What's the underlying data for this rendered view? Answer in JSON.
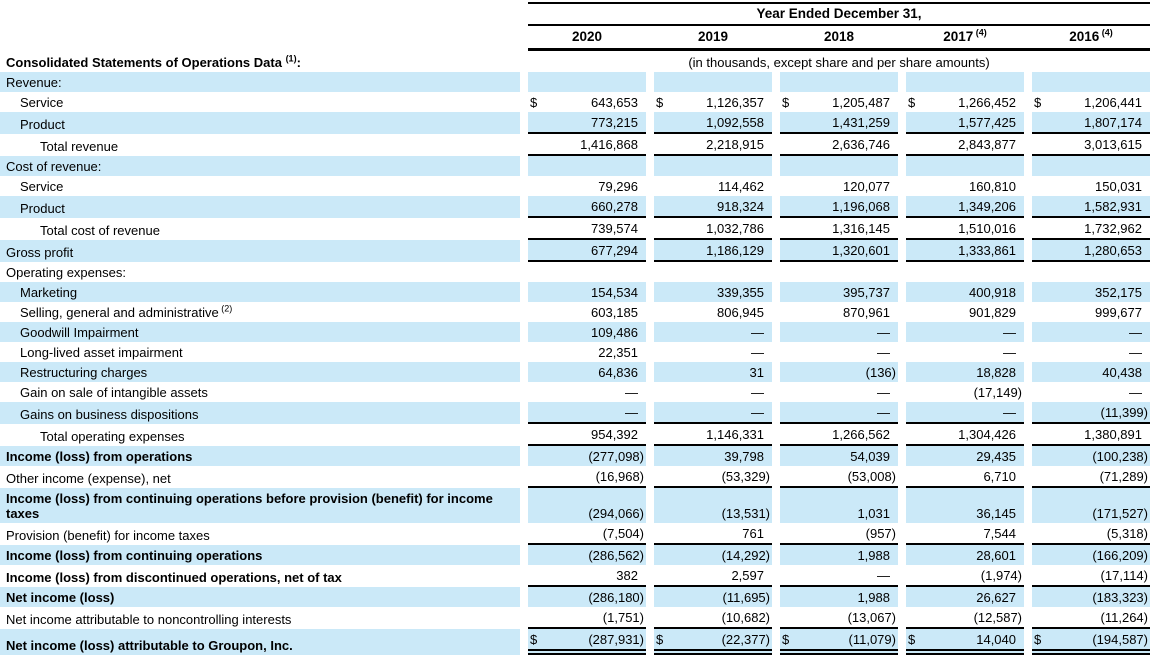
{
  "colors": {
    "row_highlight": "#cbe9f8",
    "rule": "#000000",
    "text": "#000000"
  },
  "table": {
    "currency_symbol": "$",
    "header": {
      "year_ended": "Year Ended December 31,",
      "columns": [
        {
          "label": "2020",
          "superscript": ""
        },
        {
          "label": "2019",
          "superscript": ""
        },
        {
          "label": "2018",
          "superscript": ""
        },
        {
          "label": "2017",
          "superscript": "(4)"
        },
        {
          "label": "2016",
          "superscript": "(4)"
        }
      ],
      "section_label": "Consolidated Statements of Operations Data",
      "section_superscript": "(1)",
      "section_colon": ":",
      "units_note": "(in thousands, except share and per share amounts)"
    },
    "rows": [
      {
        "label": "Revenue:",
        "indent": 0,
        "bold": false,
        "shaded": true,
        "dollar_sign": false,
        "underline": "none",
        "values": [
          "",
          "",
          "",
          "",
          ""
        ]
      },
      {
        "label": "Service",
        "indent": 1,
        "bold": false,
        "shaded": false,
        "dollar_sign": true,
        "underline": "none",
        "values": [
          "643,653",
          "1,126,357",
          "1,205,487",
          "1,266,452",
          "1,206,441"
        ]
      },
      {
        "label": "Product",
        "indent": 1,
        "bold": false,
        "shaded": true,
        "dollar_sign": false,
        "underline": "single",
        "values": [
          "773,215",
          "1,092,558",
          "1,431,259",
          "1,577,425",
          "1,807,174"
        ]
      },
      {
        "label": "Total revenue",
        "indent": 2,
        "bold": false,
        "shaded": false,
        "dollar_sign": false,
        "underline": "single",
        "values": [
          "1,416,868",
          "2,218,915",
          "2,636,746",
          "2,843,877",
          "3,013,615"
        ]
      },
      {
        "label": "Cost of revenue:",
        "indent": 0,
        "bold": false,
        "shaded": true,
        "dollar_sign": false,
        "underline": "none",
        "values": [
          "",
          "",
          "",
          "",
          ""
        ]
      },
      {
        "label": "Service",
        "indent": 1,
        "bold": false,
        "shaded": false,
        "dollar_sign": false,
        "underline": "none",
        "values": [
          "79,296",
          "114,462",
          "120,077",
          "160,810",
          "150,031"
        ]
      },
      {
        "label": "Product",
        "indent": 1,
        "bold": false,
        "shaded": true,
        "dollar_sign": false,
        "underline": "single",
        "values": [
          "660,278",
          "918,324",
          "1,196,068",
          "1,349,206",
          "1,582,931"
        ]
      },
      {
        "label": "Total cost of revenue",
        "indent": 2,
        "bold": false,
        "shaded": false,
        "dollar_sign": false,
        "underline": "single",
        "values": [
          "739,574",
          "1,032,786",
          "1,316,145",
          "1,510,016",
          "1,732,962"
        ]
      },
      {
        "label": "Gross profit",
        "indent": 0,
        "bold": false,
        "shaded": true,
        "dollar_sign": false,
        "underline": "single",
        "values": [
          "677,294",
          "1,186,129",
          "1,320,601",
          "1,333,861",
          "1,280,653"
        ]
      },
      {
        "label": "Operating expenses:",
        "indent": 0,
        "bold": false,
        "shaded": false,
        "dollar_sign": false,
        "underline": "none",
        "values": [
          "",
          "",
          "",
          "",
          ""
        ]
      },
      {
        "label": "Marketing",
        "indent": 1,
        "bold": false,
        "shaded": true,
        "dollar_sign": false,
        "underline": "none",
        "values": [
          "154,534",
          "339,355",
          "395,737",
          "400,918",
          "352,175"
        ]
      },
      {
        "label": "Selling, general and administrative",
        "superscript": "(2)",
        "indent": 1,
        "bold": false,
        "shaded": false,
        "dollar_sign": false,
        "underline": "none",
        "values": [
          "603,185",
          "806,945",
          "870,961",
          "901,829",
          "999,677"
        ]
      },
      {
        "label": "Goodwill Impairment",
        "indent": 1,
        "bold": false,
        "shaded": true,
        "dollar_sign": false,
        "underline": "none",
        "values": [
          "109,486",
          "—",
          "—",
          "—",
          "—"
        ]
      },
      {
        "label": "Long-lived asset impairment",
        "indent": 1,
        "bold": false,
        "shaded": false,
        "dollar_sign": false,
        "underline": "none",
        "values": [
          "22,351",
          "—",
          "—",
          "—",
          "—"
        ]
      },
      {
        "label": "Restructuring charges",
        "indent": 1,
        "bold": false,
        "shaded": true,
        "dollar_sign": false,
        "underline": "none",
        "values": [
          "64,836",
          "31",
          "(136)",
          "18,828",
          "40,438"
        ]
      },
      {
        "label": "Gain on sale of intangible assets",
        "indent": 1,
        "bold": false,
        "shaded": false,
        "dollar_sign": false,
        "underline": "none",
        "values": [
          "—",
          "—",
          "—",
          "(17,149)",
          "—"
        ]
      },
      {
        "label": "Gains on business dispositions",
        "indent": 1,
        "bold": false,
        "shaded": true,
        "dollar_sign": false,
        "underline": "single",
        "values": [
          "—",
          "—",
          "—",
          "—",
          "(11,399)"
        ]
      },
      {
        "label": "Total operating expenses",
        "indent": 2,
        "bold": false,
        "shaded": false,
        "dollar_sign": false,
        "underline": "single",
        "values": [
          "954,392",
          "1,146,331",
          "1,266,562",
          "1,304,426",
          "1,380,891"
        ]
      },
      {
        "label": "Income (loss) from operations",
        "indent": 0,
        "bold": true,
        "shaded": true,
        "dollar_sign": false,
        "underline": "none",
        "values": [
          "(277,098)",
          "39,798",
          "54,039",
          "29,435",
          "(100,238)"
        ]
      },
      {
        "label": "Other income (expense), net",
        "indent": 0,
        "bold": false,
        "shaded": false,
        "dollar_sign": false,
        "underline": "single",
        "values": [
          "(16,968)",
          "(53,329)",
          "(53,008)",
          "6,710",
          "(71,289)"
        ]
      },
      {
        "label": "Income (loss) from continuing operations before provision (benefit) for income taxes",
        "indent": 0,
        "bold": true,
        "shaded": true,
        "dollar_sign": false,
        "underline": "none",
        "values": [
          "(294,066)",
          "(13,531)",
          "1,031",
          "36,145",
          "(171,527)"
        ]
      },
      {
        "label": "Provision (benefit) for income taxes",
        "indent": 0,
        "bold": false,
        "shaded": false,
        "dollar_sign": false,
        "underline": "single",
        "values": [
          "(7,504)",
          "761",
          "(957)",
          "7,544",
          "(5,318)"
        ]
      },
      {
        "label": "Income (loss) from continuing operations",
        "indent": 0,
        "bold": true,
        "shaded": true,
        "dollar_sign": false,
        "underline": "none",
        "values": [
          "(286,562)",
          "(14,292)",
          "1,988",
          "28,601",
          "(166,209)"
        ]
      },
      {
        "label": "Income (loss) from discontinued operations, net of tax",
        "indent": 0,
        "bold": true,
        "shaded": false,
        "dollar_sign": false,
        "underline": "single",
        "values": [
          "382",
          "2,597",
          "—",
          "(1,974)",
          "(17,114)"
        ]
      },
      {
        "label": "Net income (loss)",
        "indent": 0,
        "bold": true,
        "shaded": true,
        "dollar_sign": false,
        "underline": "none",
        "values": [
          "(286,180)",
          "(11,695)",
          "1,988",
          "26,627",
          "(183,323)"
        ]
      },
      {
        "label": "Net income attributable to noncontrolling interests",
        "indent": 0,
        "bold": false,
        "shaded": false,
        "dollar_sign": false,
        "underline": "single",
        "values": [
          "(1,751)",
          "(10,682)",
          "(13,067)",
          "(12,587)",
          "(11,264)"
        ]
      },
      {
        "label": "Net income (loss) attributable to Groupon, Inc.",
        "indent": 0,
        "bold": true,
        "shaded": true,
        "dollar_sign": true,
        "underline": "double",
        "values": [
          "(287,931)",
          "(22,377)",
          "(11,079)",
          "14,040",
          "(194,587)"
        ]
      }
    ]
  }
}
